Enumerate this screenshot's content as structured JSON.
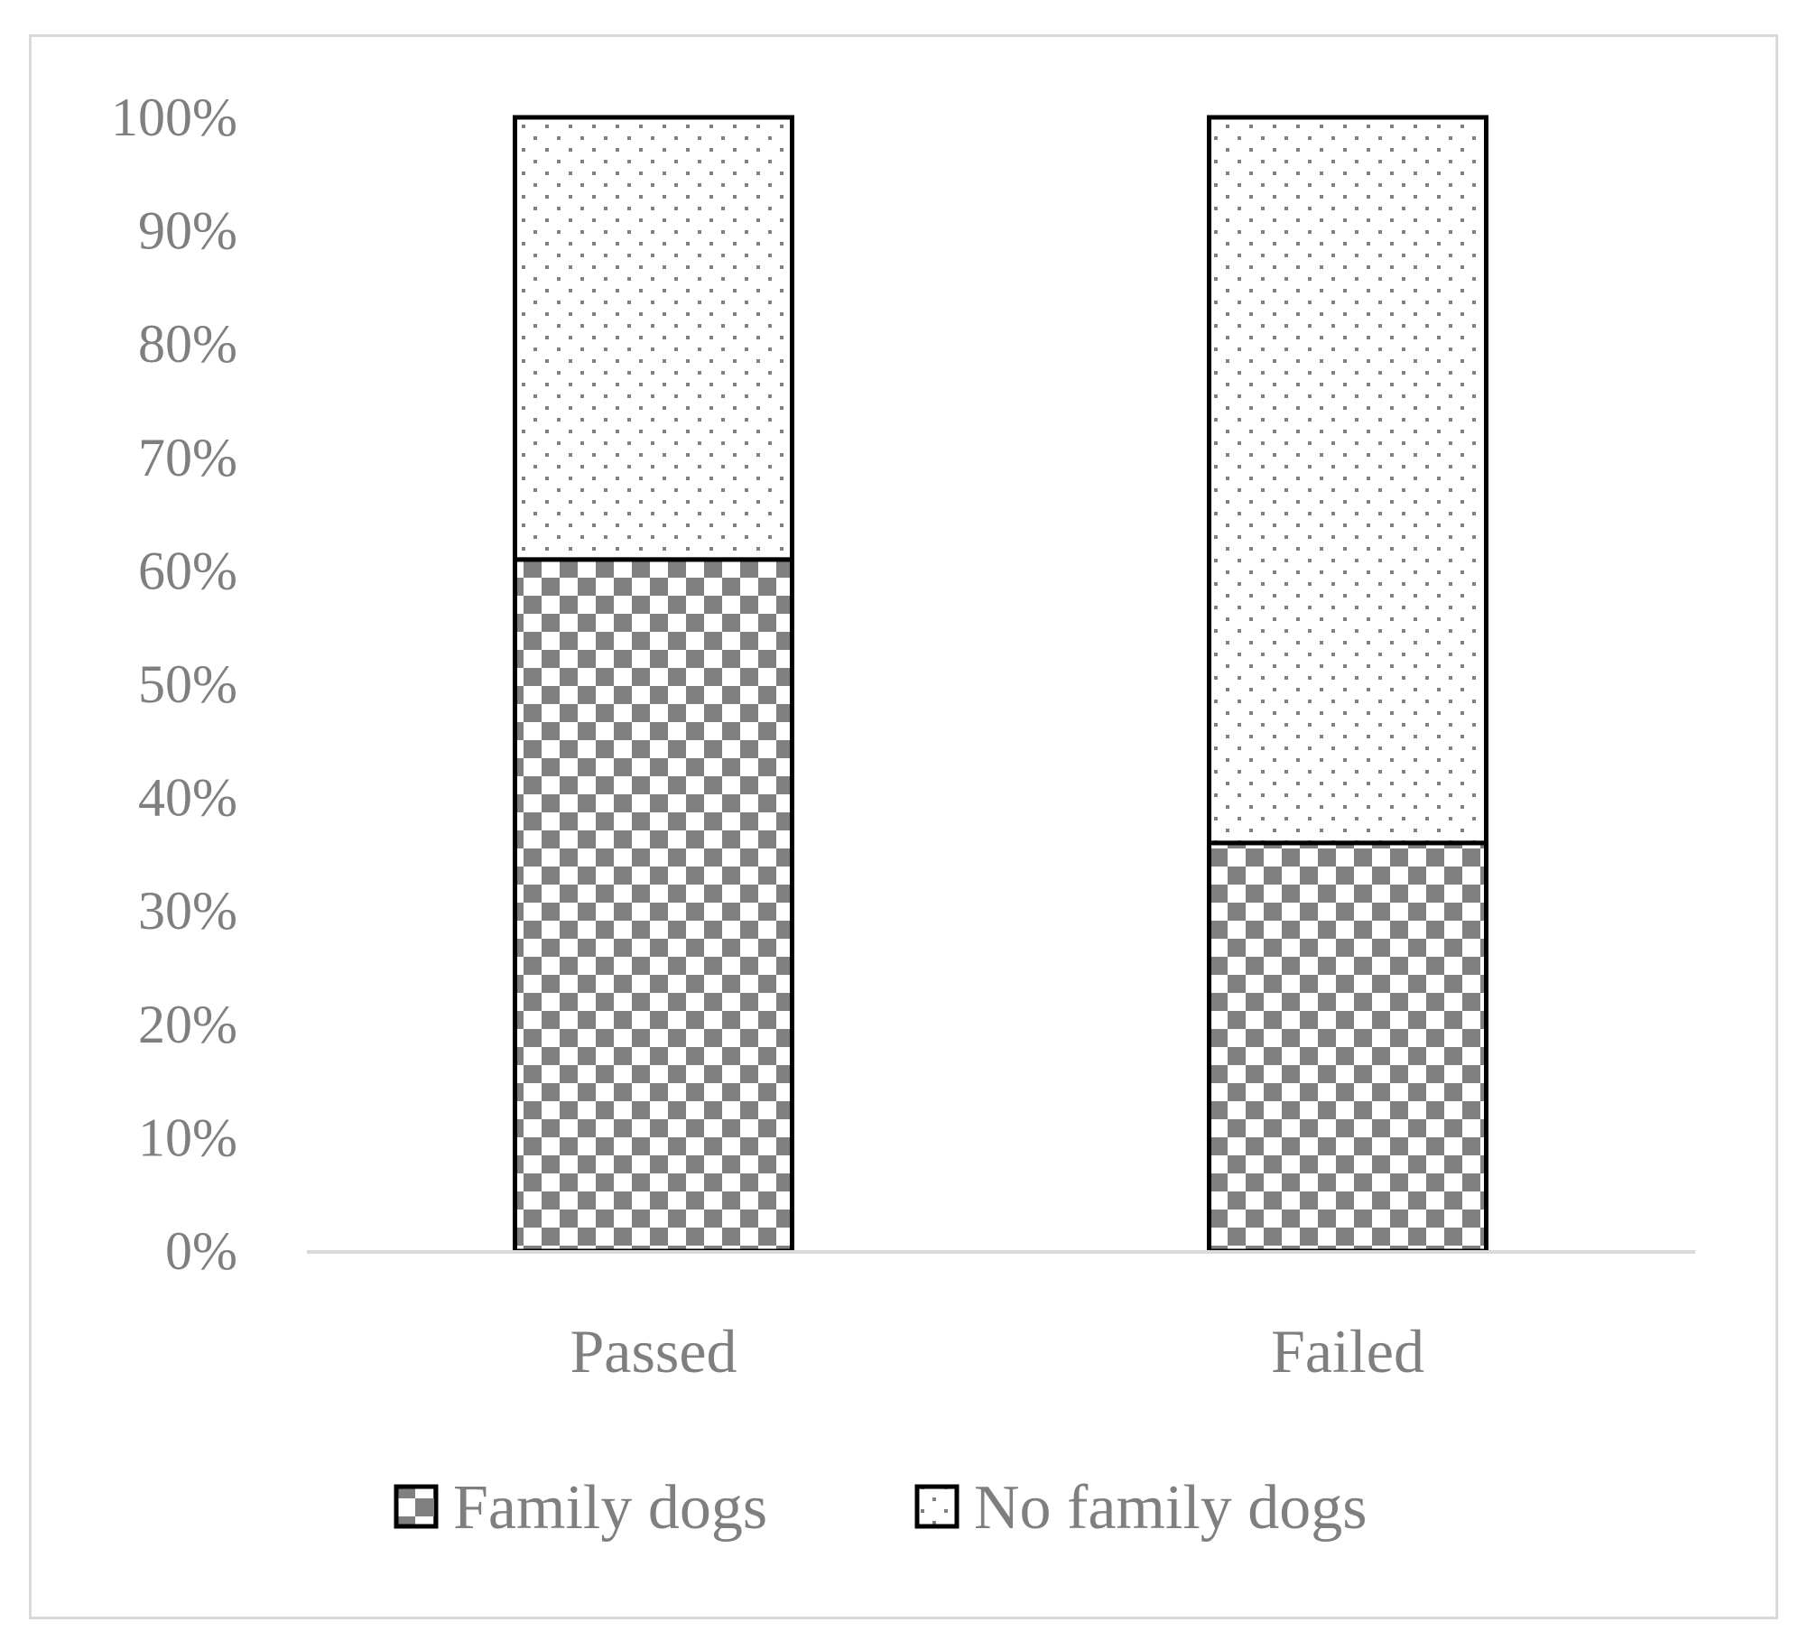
{
  "chart_data": {
    "type": "bar",
    "stacked": true,
    "percent": true,
    "categories": [
      "Passed",
      "Failed"
    ],
    "series": [
      {
        "name": "Family dogs",
        "values": [
          61,
          36
        ],
        "pattern": "checkerboard",
        "color": "#808080"
      },
      {
        "name": "No family dogs",
        "values": [
          39,
          64
        ],
        "pattern": "dots",
        "color": "#808080"
      }
    ],
    "yticks": [
      "0%",
      "10%",
      "20%",
      "30%",
      "40%",
      "50%",
      "60%",
      "70%",
      "80%",
      "90%",
      "100%"
    ],
    "ylim": [
      0,
      100
    ],
    "grid": false,
    "legend": "bottom",
    "title": "",
    "xlabel": "",
    "ylabel": ""
  }
}
